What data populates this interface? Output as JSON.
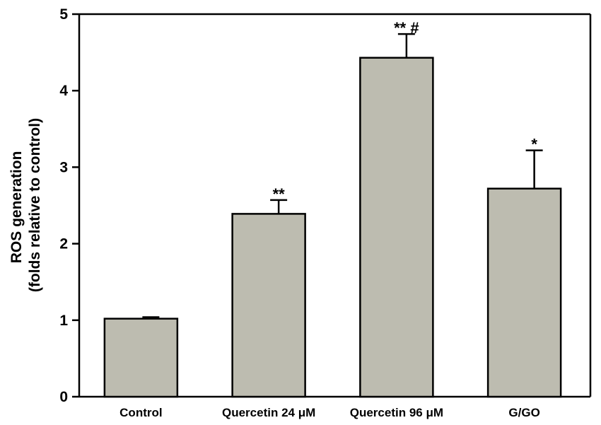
{
  "chart_data": {
    "type": "bar",
    "title": "",
    "ylabel": [
      "ROS generation",
      "(folds relative to control)"
    ],
    "xlabel": "",
    "ylim": [
      0,
      5
    ],
    "yticks": [
      0,
      1,
      2,
      3,
      4,
      5
    ],
    "categories": [
      "Control",
      "Quercetin 24 μM",
      "Quercetin 96 μM",
      "G/GO"
    ],
    "values": [
      1.02,
      2.39,
      4.43,
      2.72
    ],
    "errors": [
      0.02,
      0.18,
      0.31,
      0.5
    ],
    "annotations": [
      "",
      "**",
      "** #",
      "*"
    ],
    "bar_color": "#bdbcb0",
    "grid": false,
    "legend": "none"
  }
}
